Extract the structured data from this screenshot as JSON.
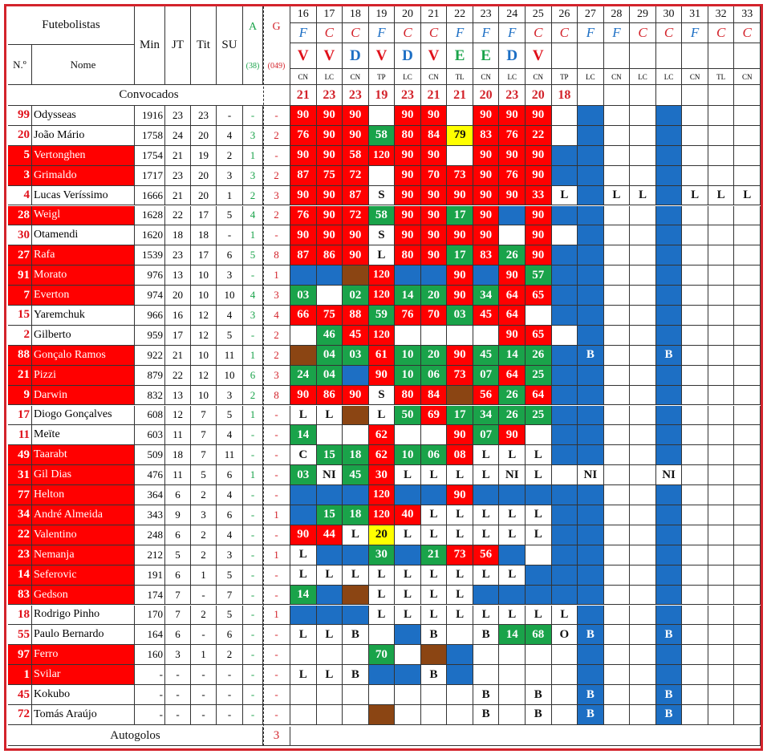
{
  "header": {
    "futebolistas": "Futebolistas",
    "min": "Min",
    "jt": "JT",
    "tit": "Tit",
    "su": "SU",
    "a": "A",
    "g": "G",
    "num": "N.º",
    "nome": "Nome",
    "a_total": "(38)",
    "g_total": "(049)",
    "convocados": "Convocados",
    "autogolos": "Autogolos",
    "autogolos_value": "3"
  },
  "colors": {
    "red": "#ff0000",
    "green": "#1aa34a",
    "blue": "#1d6fc4",
    "brown": "#8b4513",
    "yellow": "#ffff00",
    "accent": "#d3232b"
  },
  "matchdays": [
    {
      "n": "16",
      "comp": "F",
      "res": "V",
      "venue": "CN",
      "conv": "21"
    },
    {
      "n": "17",
      "comp": "C",
      "res": "V",
      "venue": "LC",
      "conv": "23"
    },
    {
      "n": "18",
      "comp": "C",
      "res": "D",
      "venue": "CN",
      "conv": "23"
    },
    {
      "n": "19",
      "comp": "F",
      "res": "V",
      "venue": "TP",
      "conv": "19"
    },
    {
      "n": "20",
      "comp": "C",
      "res": "D",
      "venue": "LC",
      "conv": "23"
    },
    {
      "n": "21",
      "comp": "C",
      "res": "V",
      "venue": "CN",
      "conv": "21"
    },
    {
      "n": "22",
      "comp": "F",
      "res": "E",
      "venue": "TL",
      "conv": "21"
    },
    {
      "n": "23",
      "comp": "F",
      "res": "E",
      "venue": "CN",
      "conv": "20"
    },
    {
      "n": "24",
      "comp": "F",
      "res": "D",
      "venue": "LC",
      "conv": "23"
    },
    {
      "n": "25",
      "comp": "C",
      "res": "V",
      "venue": "CN",
      "conv": "20"
    },
    {
      "n": "26",
      "comp": "C",
      "res": "",
      "venue": "TP",
      "conv": "18"
    },
    {
      "n": "27",
      "comp": "F",
      "res": "",
      "venue": "LC",
      "conv": ""
    },
    {
      "n": "28",
      "comp": "F",
      "res": "",
      "venue": "CN",
      "conv": ""
    },
    {
      "n": "29",
      "comp": "C",
      "res": "",
      "venue": "LC",
      "conv": ""
    },
    {
      "n": "30",
      "comp": "C",
      "res": "",
      "venue": "LC",
      "conv": ""
    },
    {
      "n": "31",
      "comp": "F",
      "res": "",
      "venue": "CN",
      "conv": ""
    },
    {
      "n": "32",
      "comp": "C",
      "res": "",
      "venue": "TL",
      "conv": ""
    },
    {
      "n": "33",
      "comp": "C",
      "res": "",
      "venue": "CN",
      "conv": ""
    }
  ],
  "players": [
    {
      "num": "99",
      "name": "Odysseas",
      "red": false,
      "min": "1916",
      "jt": "23",
      "tit": "23",
      "su": "-",
      "a": "-",
      "g": "-",
      "cells": [
        "r90",
        "r90",
        "r90",
        "",
        "r90",
        "r90",
        "",
        "r90",
        "r90",
        "r90",
        "",
        "b",
        "",
        "",
        "b",
        "",
        "",
        ""
      ]
    },
    {
      "num": "20",
      "name": "João Mário",
      "red": false,
      "min": "1758",
      "jt": "24",
      "tit": "20",
      "su": "4",
      "a": "3",
      "g": "2",
      "cells": [
        "r76",
        "r90",
        "r90",
        "g58",
        "r80",
        "r84",
        "y79",
        "r83",
        "r76",
        "r22",
        "",
        "b",
        "",
        "",
        "b",
        "",
        "",
        ""
      ]
    },
    {
      "num": "5",
      "name": "Vertonghen",
      "red": true,
      "min": "1754",
      "jt": "21",
      "tit": "19",
      "su": "2",
      "a": "1",
      "g": "-",
      "cells": [
        "r90",
        "r90",
        "r58",
        "r120",
        "r90",
        "r90",
        "",
        "r90",
        "r90",
        "r90",
        "b",
        "b",
        "",
        "",
        "b",
        "",
        "",
        ""
      ]
    },
    {
      "num": "3",
      "name": "Grimaldo",
      "red": true,
      "min": "1717",
      "jt": "23",
      "tit": "20",
      "su": "3",
      "a": "3",
      "g": "2",
      "cells": [
        "r87",
        "r75",
        "r72",
        "",
        "r90",
        "r70",
        "r73",
        "r90",
        "r76",
        "r90",
        "b",
        "b",
        "",
        "",
        "b",
        "",
        "",
        ""
      ]
    },
    {
      "num": "4",
      "name": "Lucas Veríssimo",
      "red": false,
      "min": "1666",
      "jt": "21",
      "tit": "20",
      "su": "1",
      "a": "2",
      "g": "3",
      "cells": [
        "r90",
        "r90",
        "r87",
        "wS",
        "r90",
        "r90",
        "r90",
        "r90",
        "r90",
        "r33",
        "wL",
        "b",
        "wL",
        "wL",
        "b",
        "wL",
        "wL",
        "wL"
      ]
    },
    {
      "num": "28",
      "name": "Weigl",
      "red": true,
      "min": "1628",
      "jt": "22",
      "tit": "17",
      "su": "5",
      "a": "4",
      "g": "2",
      "cells": [
        "r76",
        "r90",
        "r72",
        "g58",
        "r90",
        "r90",
        "g17",
        "r90",
        "b",
        "r90",
        "b",
        "b",
        "",
        "",
        "b",
        "",
        "",
        ""
      ]
    },
    {
      "num": "30",
      "name": "Otamendi",
      "red": false,
      "min": "1620",
      "jt": "18",
      "tit": "18",
      "su": "-",
      "a": "1",
      "g": "-",
      "cells": [
        "r90",
        "r90",
        "r90",
        "wS",
        "r90",
        "r90",
        "r90",
        "r90",
        "",
        "r90",
        "",
        "b",
        "",
        "",
        "b",
        "",
        "",
        ""
      ]
    },
    {
      "num": "27",
      "name": "Rafa",
      "red": true,
      "min": "1539",
      "jt": "23",
      "tit": "17",
      "su": "6",
      "a": "5",
      "g": "8",
      "cells": [
        "r87",
        "r86",
        "r90",
        "wL",
        "r80",
        "r90",
        "g17",
        "r83",
        "g26",
        "r90",
        "b",
        "b",
        "",
        "",
        "b",
        "",
        "",
        ""
      ]
    },
    {
      "num": "91",
      "name": "Morato",
      "red": true,
      "min": "976",
      "jt": "13",
      "tit": "10",
      "su": "3",
      "a": "-",
      "g": "1",
      "cells": [
        "b",
        "b",
        "n",
        "r120",
        "b",
        "b",
        "r90",
        "b",
        "r90",
        "g57",
        "b",
        "b",
        "",
        "",
        "b",
        "",
        "",
        ""
      ]
    },
    {
      "num": "7",
      "name": "Everton",
      "red": true,
      "min": "974",
      "jt": "20",
      "tit": "10",
      "su": "10",
      "a": "4",
      "g": "3",
      "cells": [
        "g03",
        "",
        "g02",
        "r120",
        "g14",
        "g20",
        "r90",
        "g34",
        "r64",
        "r65",
        "b",
        "b",
        "",
        "",
        "b",
        "",
        "",
        ""
      ]
    },
    {
      "num": "15",
      "name": "Yaremchuk",
      "red": false,
      "min": "966",
      "jt": "16",
      "tit": "12",
      "su": "4",
      "a": "3",
      "g": "4",
      "cells": [
        "r66",
        "r75",
        "r88",
        "g59",
        "r76",
        "r70",
        "g03",
        "r45",
        "r64",
        "",
        "b",
        "b",
        "",
        "",
        "b",
        "",
        "",
        ""
      ]
    },
    {
      "num": "2",
      "name": "Gilberto",
      "red": false,
      "min": "959",
      "jt": "17",
      "tit": "12",
      "su": "5",
      "a": "-",
      "g": "2",
      "cells": [
        "",
        "g46",
        "r45",
        "r120",
        "",
        "",
        "",
        "",
        "r90",
        "r65",
        "",
        "b",
        "",
        "",
        "b",
        "",
        "",
        ""
      ]
    },
    {
      "num": "88",
      "name": "Gonçalo Ramos",
      "red": true,
      "min": "922",
      "jt": "21",
      "tit": "10",
      "su": "11",
      "a": "1",
      "g": "2",
      "cells": [
        "n",
        "g04",
        "g03",
        "r61",
        "g10",
        "g20",
        "r90",
        "g45",
        "g14",
        "g26",
        "b",
        "bB",
        "",
        "",
        "bB",
        "",
        "",
        ""
      ]
    },
    {
      "num": "21",
      "name": "Pizzi",
      "red": true,
      "min": "879",
      "jt": "22",
      "tit": "12",
      "su": "10",
      "a": "6",
      "g": "3",
      "cells": [
        "g24",
        "g04",
        "b",
        "r90",
        "g10",
        "g06",
        "r73",
        "g07",
        "r64",
        "g25",
        "b",
        "b",
        "",
        "",
        "b",
        "",
        "",
        ""
      ]
    },
    {
      "num": "9",
      "name": "Darwin",
      "red": true,
      "min": "832",
      "jt": "13",
      "tit": "10",
      "su": "3",
      "a": "2",
      "g": "8",
      "cells": [
        "r90",
        "r86",
        "r90",
        "wS",
        "r80",
        "r84",
        "n",
        "r56",
        "g26",
        "r64",
        "b",
        "b",
        "",
        "",
        "b",
        "",
        "",
        ""
      ]
    },
    {
      "num": "17",
      "name": "Diogo Gonçalves",
      "red": false,
      "min": "608",
      "jt": "12",
      "tit": "7",
      "su": "5",
      "a": "1",
      "g": "-",
      "cells": [
        "wL",
        "wL",
        "n",
        "wL",
        "g50",
        "r69",
        "g17",
        "g34",
        "g26",
        "g25",
        "b",
        "b",
        "",
        "",
        "b",
        "",
        "",
        ""
      ]
    },
    {
      "num": "11",
      "name": "Meïte",
      "red": false,
      "min": "603",
      "jt": "11",
      "tit": "7",
      "su": "4",
      "a": "-",
      "g": "-",
      "cells": [
        "g14",
        "",
        "",
        "r62",
        "",
        "",
        "r90",
        "g07",
        "r90",
        "",
        "b",
        "b",
        "",
        "",
        "b",
        "",
        "",
        ""
      ]
    },
    {
      "num": "49",
      "name": "Taarabt",
      "red": true,
      "min": "509",
      "jt": "18",
      "tit": "7",
      "su": "11",
      "a": "-",
      "g": "-",
      "cells": [
        "wC",
        "g15",
        "g18",
        "r62",
        "g10",
        "g06",
        "r08",
        "wL",
        "wL",
        "wL",
        "b",
        "b",
        "",
        "",
        "b",
        "",
        "",
        ""
      ]
    },
    {
      "num": "31",
      "name": "Gil Dias",
      "red": true,
      "min": "476",
      "jt": "11",
      "tit": "5",
      "su": "6",
      "a": "1",
      "g": "-",
      "cells": [
        "g03",
        "wNI",
        "g45",
        "r30",
        "wL",
        "wL",
        "wL",
        "wL",
        "wNI",
        "wL",
        "",
        "wNI",
        "",
        "",
        "wNI",
        "",
        "",
        ""
      ]
    },
    {
      "num": "77",
      "name": "Helton",
      "red": true,
      "min": "364",
      "jt": "6",
      "tit": "2",
      "su": "4",
      "a": "-",
      "g": "-",
      "cells": [
        "b",
        "b",
        "b",
        "r120",
        "b",
        "b",
        "r90",
        "b",
        "b",
        "b",
        "b",
        "b",
        "",
        "",
        "b",
        "",
        "",
        ""
      ]
    },
    {
      "num": "34",
      "name": "André Almeida",
      "red": true,
      "min": "343",
      "jt": "9",
      "tit": "3",
      "su": "6",
      "a": "-",
      "g": "1",
      "cells": [
        "b",
        "g15",
        "g18",
        "r120",
        "r40",
        "wL",
        "wL",
        "wL",
        "wL",
        "wL",
        "b",
        "b",
        "",
        "",
        "b",
        "",
        "",
        ""
      ]
    },
    {
      "num": "22",
      "name": "Valentino",
      "red": true,
      "min": "248",
      "jt": "6",
      "tit": "2",
      "su": "4",
      "a": "-",
      "g": "-",
      "cells": [
        "r90",
        "r44",
        "wL",
        "y20",
        "wL",
        "wL",
        "wL",
        "wL",
        "wL",
        "wL",
        "b",
        "b",
        "",
        "",
        "b",
        "",
        "",
        ""
      ]
    },
    {
      "num": "23",
      "name": "Nemanja",
      "red": true,
      "min": "212",
      "jt": "5",
      "tit": "2",
      "su": "3",
      "a": "-",
      "g": "1",
      "cells": [
        "wL",
        "b",
        "b",
        "g30",
        "b",
        "g21",
        "r73",
        "r56",
        "b",
        "",
        "b",
        "b",
        "",
        "",
        "b",
        "",
        "",
        ""
      ]
    },
    {
      "num": "14",
      "name": "Seferovic",
      "red": true,
      "min": "191",
      "jt": "6",
      "tit": "1",
      "su": "5",
      "a": "-",
      "g": "-",
      "cells": [
        "wL",
        "wL",
        "wL",
        "wL",
        "wL",
        "wL",
        "wL",
        "wL",
        "wL",
        "b",
        "b",
        "b",
        "",
        "",
        "b",
        "",
        "",
        ""
      ]
    },
    {
      "num": "83",
      "name": "Gedson",
      "red": true,
      "min": "174",
      "jt": "7",
      "tit": "-",
      "su": "7",
      "a": "-",
      "g": "-",
      "cells": [
        "g14",
        "b",
        "n",
        "wL",
        "wL",
        "wL",
        "wL",
        "b",
        "b",
        "b",
        "b",
        "b",
        "",
        "",
        "b",
        "",
        "",
        ""
      ]
    },
    {
      "num": "18",
      "name": "Rodrigo Pinho",
      "red": false,
      "min": "170",
      "jt": "7",
      "tit": "2",
      "su": "5",
      "a": "-",
      "g": "1",
      "cells": [
        "b",
        "b",
        "b",
        "wL",
        "wL",
        "wL",
        "wL",
        "wL",
        "wL",
        "wL",
        "wL",
        "b",
        "",
        "",
        "b",
        "",
        "",
        ""
      ]
    },
    {
      "num": "55",
      "name": "Paulo Bernardo",
      "red": false,
      "min": "164",
      "jt": "6",
      "tit": "-",
      "su": "6",
      "a": "-",
      "g": "-",
      "cells": [
        "wL",
        "wL",
        "wB",
        "",
        "b",
        "wB",
        "",
        "wB",
        "g14",
        "g68",
        "wO",
        "bB",
        "",
        "",
        "bB",
        "",
        "",
        ""
      ]
    },
    {
      "num": "97",
      "name": "Ferro",
      "red": true,
      "min": "160",
      "jt": "3",
      "tit": "1",
      "su": "2",
      "a": "-",
      "g": "-",
      "cells": [
        "",
        "",
        "",
        "g70",
        "",
        "n",
        "b",
        "",
        "",
        "",
        "",
        "b",
        "",
        "",
        "b",
        "",
        "",
        ""
      ]
    },
    {
      "num": "1",
      "name": "Svilar",
      "red": true,
      "min": "-",
      "jt": "-",
      "tit": "-",
      "su": "-",
      "a": "-",
      "g": "-",
      "cells": [
        "wL",
        "wL",
        "wB",
        "b",
        "b",
        "wB",
        "b",
        "",
        "",
        "",
        "",
        "b",
        "",
        "",
        "b",
        "",
        "",
        ""
      ]
    },
    {
      "num": "45",
      "name": "Kokubo",
      "red": false,
      "min": "-",
      "jt": "-",
      "tit": "-",
      "su": "-",
      "a": "-",
      "g": "-",
      "cells": [
        "",
        "",
        "",
        "",
        "",
        "",
        "",
        "wB",
        "",
        "wB",
        "",
        "bB",
        "",
        "",
        "bB",
        "",
        "",
        ""
      ]
    },
    {
      "num": "72",
      "name": "Tomás Araújo",
      "red": false,
      "min": "-",
      "jt": "-",
      "tit": "-",
      "su": "-",
      "a": "-",
      "g": "-",
      "cells": [
        "",
        "",
        "",
        "n",
        "",
        "",
        "",
        "wB",
        "",
        "wB",
        "",
        "bB",
        "",
        "",
        "bB",
        "",
        "",
        ""
      ]
    }
  ]
}
